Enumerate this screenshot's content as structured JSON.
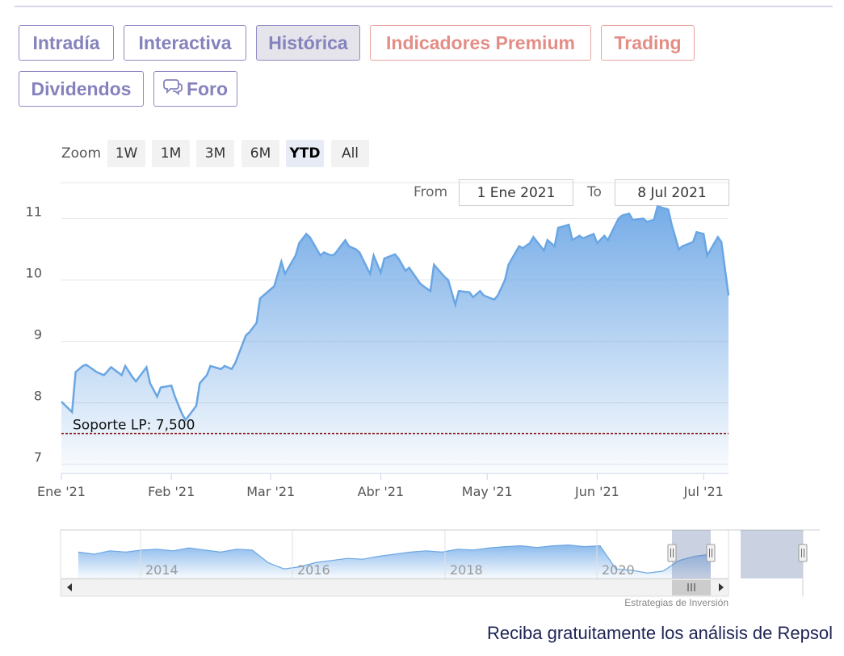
{
  "tabs": [
    {
      "label": "Intradía",
      "style": "normal"
    },
    {
      "label": "Interactiva",
      "style": "normal"
    },
    {
      "label": "Histórica",
      "style": "active"
    },
    {
      "label": "Indicadores Premium",
      "style": "premium"
    },
    {
      "label": "Trading",
      "style": "premium"
    },
    {
      "label": "Dividendos",
      "style": "normal"
    },
    {
      "label": "Foro",
      "style": "normal",
      "icon": "chat-bubble-icon"
    }
  ],
  "zoom": {
    "label": "Zoom",
    "buttons": [
      "1W",
      "1M",
      "3M",
      "6M",
      "YTD",
      "All"
    ],
    "selected": "YTD"
  },
  "range": {
    "from_label": "From",
    "from_value": "1 Ene 2021",
    "to_label": "To",
    "to_value": "8 Jul 2021"
  },
  "chart_data": {
    "type": "area",
    "title": "",
    "xlabel": "",
    "ylabel": "",
    "ylim": [
      6.85,
      11.1
    ],
    "yticks": [
      7,
      8,
      9,
      10,
      11
    ],
    "x_ticks": [
      "Ene '21",
      "Feb '21",
      "Mar '21",
      "Abr '21",
      "May '21",
      "Jun '21",
      "Jul '21"
    ],
    "x_start": "2021-01-01",
    "x_end": "2021-07-08",
    "series": [
      {
        "x": [
          "2021-01-01",
          "2021-01-04",
          "2021-01-05",
          "2021-01-07",
          "2021-01-08",
          "2021-01-11",
          "2021-01-13",
          "2021-01-15",
          "2021-01-18",
          "2021-01-19",
          "2021-01-21",
          "2021-01-22",
          "2021-01-25",
          "2021-01-26",
          "2021-01-28",
          "2021-01-29",
          "2021-02-01",
          "2021-02-02",
          "2021-02-04",
          "2021-02-05",
          "2021-02-08",
          "2021-02-09",
          "2021-02-11",
          "2021-02-12",
          "2021-02-15",
          "2021-02-16",
          "2021-02-18",
          "2021-02-19",
          "2021-02-22",
          "2021-02-23",
          "2021-02-25",
          "2021-02-26",
          "2021-03-01",
          "2021-03-02",
          "2021-03-04",
          "2021-03-05",
          "2021-03-08",
          "2021-03-09",
          "2021-03-11",
          "2021-03-12",
          "2021-03-15",
          "2021-03-16",
          "2021-03-18",
          "2021-03-19",
          "2021-03-22",
          "2021-03-23",
          "2021-03-25",
          "2021-03-26",
          "2021-03-29",
          "2021-03-30",
          "2021-04-01",
          "2021-04-02",
          "2021-04-05",
          "2021-04-06",
          "2021-04-08",
          "2021-04-09",
          "2021-04-12",
          "2021-04-13",
          "2021-04-15",
          "2021-04-16",
          "2021-04-19",
          "2021-04-20",
          "2021-04-22",
          "2021-04-23",
          "2021-04-26",
          "2021-04-27",
          "2021-04-29",
          "2021-04-30",
          "2021-05-03",
          "2021-05-04",
          "2021-05-06",
          "2021-05-07",
          "2021-05-10",
          "2021-05-11",
          "2021-05-13",
          "2021-05-14",
          "2021-05-17",
          "2021-05-18",
          "2021-05-20",
          "2021-05-21",
          "2021-05-24",
          "2021-05-25",
          "2021-05-27",
          "2021-05-28",
          "2021-05-31",
          "2021-06-01",
          "2021-06-03",
          "2021-06-04",
          "2021-06-07",
          "2021-06-08",
          "2021-06-10",
          "2021-06-11",
          "2021-06-14",
          "2021-06-15",
          "2021-06-17",
          "2021-06-18",
          "2021-06-21",
          "2021-06-22",
          "2021-06-24",
          "2021-06-25",
          "2021-06-28",
          "2021-06-29",
          "2021-07-01",
          "2021-07-02",
          "2021-07-05",
          "2021-07-06",
          "2021-07-08"
        ],
        "values": [
          8.02,
          7.85,
          8.5,
          8.6,
          8.62,
          8.5,
          8.45,
          8.58,
          8.45,
          8.6,
          8.42,
          8.35,
          8.58,
          8.32,
          8.1,
          8.25,
          8.28,
          8.1,
          7.82,
          7.72,
          7.95,
          8.32,
          8.45,
          8.6,
          8.55,
          8.6,
          8.55,
          8.65,
          9.1,
          9.15,
          9.3,
          9.7,
          9.85,
          9.9,
          10.3,
          10.1,
          10.4,
          10.6,
          10.75,
          10.7,
          10.4,
          10.45,
          10.4,
          10.42,
          10.65,
          10.55,
          10.5,
          10.45,
          10.1,
          10.4,
          10.12,
          10.35,
          10.42,
          10.35,
          10.15,
          10.2,
          9.95,
          9.9,
          9.82,
          10.25,
          10.05,
          10.0,
          9.6,
          9.82,
          9.8,
          9.72,
          9.82,
          9.75,
          9.68,
          9.75,
          10.0,
          10.25,
          10.55,
          10.52,
          10.6,
          10.7,
          10.48,
          10.65,
          10.55,
          10.85,
          10.9,
          10.65,
          10.72,
          10.68,
          10.75,
          10.6,
          10.72,
          10.65,
          11.0,
          11.05,
          11.08,
          10.98,
          11.0,
          10.95,
          10.98,
          11.2,
          11.15,
          10.9,
          10.5,
          10.55,
          10.62,
          10.78,
          10.75,
          10.4,
          10.7,
          10.62,
          9.75
        ]
      }
    ],
    "support_line": {
      "label": "Soporte LP: 7,500",
      "value": 7.5
    },
    "navigator": {
      "year_labels": [
        "2014",
        "2016",
        "2018",
        "2020"
      ]
    }
  },
  "credits": "Estrategias de Inversión",
  "cta": "Reciba gratuitamente los análisis de Repsol"
}
